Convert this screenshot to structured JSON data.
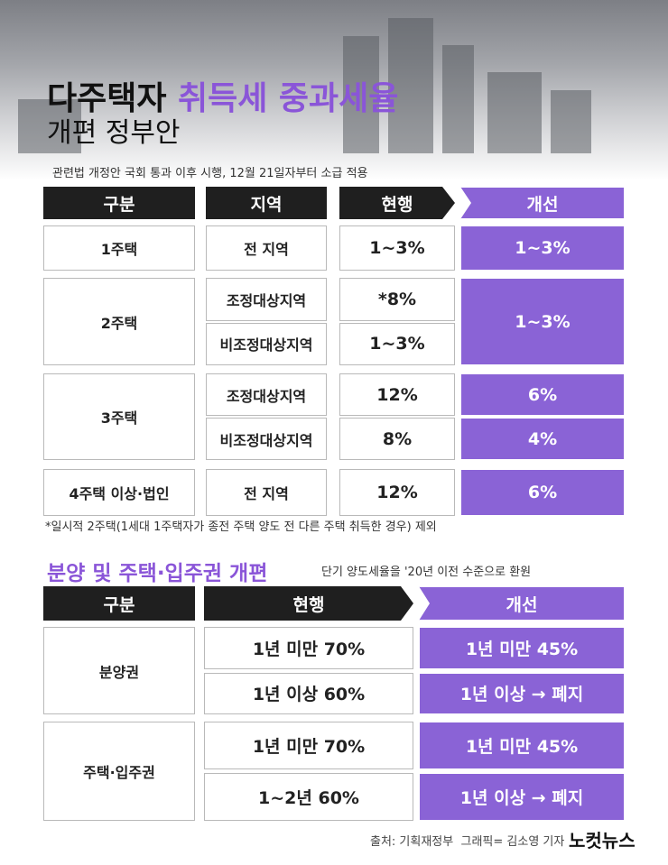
{
  "header": {
    "title_part1": "다주택자",
    "title_highlight": "취득세 중과세율",
    "title_line2": "개편 정부안",
    "subtitle": "관련법 개정안 국회 통과 이후 시행, 12월 21일자부터 소급 적용"
  },
  "table1": {
    "headers": [
      "구분",
      "지역",
      "현행",
      "개선"
    ],
    "groups": [
      {
        "label": "1주택",
        "rows": [
          {
            "region": "전 지역",
            "current": "1~3%",
            "improved": "1~3%"
          }
        ]
      },
      {
        "label": "2주택",
        "rows": [
          {
            "region": "조정대상지역",
            "current": "*8%"
          },
          {
            "region": "비조정대상지역",
            "current": "1~3%"
          }
        ],
        "improved": "1~3%"
      },
      {
        "label": "3주택",
        "rows": [
          {
            "region": "조정대상지역",
            "current": "12%",
            "improved": "6%"
          },
          {
            "region": "비조정대상지역",
            "current": "8%",
            "improved": "4%"
          }
        ]
      },
      {
        "label": "4주택 이상·법인",
        "rows": [
          {
            "region": "전 지역",
            "current": "12%",
            "improved": "6%"
          }
        ]
      }
    ]
  },
  "footnote": "*일시적 2주택(1세대 1주택자가 종전 주택 양도 전 다른 주택 취득한 경우) 제외",
  "section2": {
    "title": "분양 및 주택·입주권 개편",
    "subtitle": "단기 양도세율을 '20년 이전 수준으로 환원"
  },
  "table2": {
    "headers": [
      "구분",
      "현행",
      "개선"
    ],
    "groups": [
      {
        "label": "분양권",
        "rows": [
          {
            "current": "1년 미만 70%",
            "improved": "1년 미만 45%"
          },
          {
            "current": "1년 이상 60%",
            "improved": "1년 이상 → 폐지"
          }
        ]
      },
      {
        "label": "주택·입주권",
        "rows": [
          {
            "current": "1년 미만 70%",
            "improved": "1년 미만 45%"
          },
          {
            "current": "1~2년 60%",
            "improved": "1년 이상 → 폐지"
          }
        ]
      }
    ]
  },
  "source": "출처: 기획재정부  그래픽= 김소영 기자",
  "logo": "노컷뉴스"
}
